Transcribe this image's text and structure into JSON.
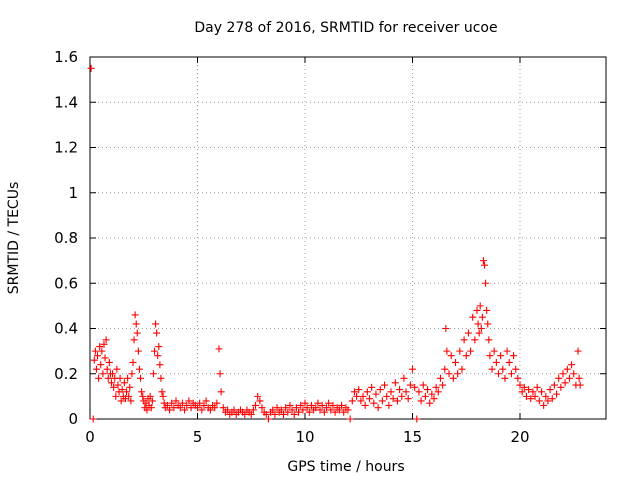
{
  "chart_data": {
    "type": "scatter",
    "title": "Day 278 of 2016, SRMTID for receiver ucoe",
    "xlabel": "GPS time / hours",
    "ylabel": "SRMTID / TECUs",
    "xlim": [
      0,
      24
    ],
    "ylim": [
      0,
      1.6
    ],
    "xticks": [
      0,
      5,
      10,
      15,
      20
    ],
    "yticks": [
      0,
      0.2,
      0.4,
      0.6,
      0.8,
      1,
      1.2,
      1.4,
      1.6
    ],
    "ytick_labels": [
      "0",
      "0.2",
      "0.4",
      "0.6",
      "0.8",
      "1",
      "1.2",
      "1.4",
      "1.6"
    ],
    "grid": true,
    "marker": "plus",
    "series_color": "#ff0000",
    "series": [
      {
        "name": "SRMTID",
        "points": [
          [
            0.05,
            1.55
          ],
          [
            0.15,
            0.0
          ],
          [
            0.2,
            0.26
          ],
          [
            0.25,
            0.3
          ],
          [
            0.3,
            0.22
          ],
          [
            0.35,
            0.28
          ],
          [
            0.4,
            0.18
          ],
          [
            0.45,
            0.32
          ],
          [
            0.5,
            0.24
          ],
          [
            0.55,
            0.3
          ],
          [
            0.6,
            0.2
          ],
          [
            0.65,
            0.33
          ],
          [
            0.7,
            0.27
          ],
          [
            0.75,
            0.35
          ],
          [
            0.8,
            0.22
          ],
          [
            0.85,
            0.18
          ],
          [
            0.9,
            0.25
          ],
          [
            0.95,
            0.2
          ],
          [
            1.0,
            0.16
          ],
          [
            1.05,
            0.2
          ],
          [
            1.1,
            0.14
          ],
          [
            1.15,
            0.18
          ],
          [
            1.2,
            0.1
          ],
          [
            1.25,
            0.22
          ],
          [
            1.3,
            0.15
          ],
          [
            1.35,
            0.12
          ],
          [
            1.4,
            0.18
          ],
          [
            1.45,
            0.08
          ],
          [
            1.5,
            0.13
          ],
          [
            1.55,
            0.1
          ],
          [
            1.6,
            0.16
          ],
          [
            1.65,
            0.09
          ],
          [
            1.7,
            0.12
          ],
          [
            1.75,
            0.18
          ],
          [
            1.8,
            0.1
          ],
          [
            1.85,
            0.14
          ],
          [
            1.9,
            0.08
          ],
          [
            1.95,
            0.2
          ],
          [
            2.0,
            0.25
          ],
          [
            2.05,
            0.35
          ],
          [
            2.1,
            0.46
          ],
          [
            2.15,
            0.42
          ],
          [
            2.2,
            0.38
          ],
          [
            2.25,
            0.3
          ],
          [
            2.3,
            0.22
          ],
          [
            2.35,
            0.18
          ],
          [
            2.4,
            0.12
          ],
          [
            2.45,
            0.1
          ],
          [
            2.5,
            0.08
          ],
          [
            2.55,
            0.05
          ],
          [
            2.6,
            0.07
          ],
          [
            2.65,
            0.04
          ],
          [
            2.7,
            0.09
          ],
          [
            2.75,
            0.06
          ],
          [
            2.8,
            0.1
          ],
          [
            2.85,
            0.05
          ],
          [
            2.9,
            0.08
          ],
          [
            2.95,
            0.2
          ],
          [
            3.0,
            0.3
          ],
          [
            3.05,
            0.42
          ],
          [
            3.1,
            0.38
          ],
          [
            3.15,
            0.28
          ],
          [
            3.2,
            0.32
          ],
          [
            3.25,
            0.24
          ],
          [
            3.3,
            0.18
          ],
          [
            3.35,
            0.12
          ],
          [
            3.4,
            0.1
          ],
          [
            3.45,
            0.07
          ],
          [
            3.5,
            0.05
          ],
          [
            3.6,
            0.06
          ],
          [
            3.7,
            0.04
          ],
          [
            3.8,
            0.07
          ],
          [
            3.9,
            0.05
          ],
          [
            4.0,
            0.08
          ],
          [
            4.1,
            0.06
          ],
          [
            4.2,
            0.05
          ],
          [
            4.3,
            0.07
          ],
          [
            4.4,
            0.04
          ],
          [
            4.5,
            0.06
          ],
          [
            4.6,
            0.08
          ],
          [
            4.7,
            0.05
          ],
          [
            4.8,
            0.07
          ],
          [
            4.9,
            0.06
          ],
          [
            5.0,
            0.05
          ],
          [
            5.1,
            0.07
          ],
          [
            5.2,
            0.04
          ],
          [
            5.3,
            0.06
          ],
          [
            5.4,
            0.08
          ],
          [
            5.5,
            0.05
          ],
          [
            5.6,
            0.04
          ],
          [
            5.7,
            0.06
          ],
          [
            5.8,
            0.05
          ],
          [
            5.9,
            0.07
          ],
          [
            6.0,
            0.31
          ],
          [
            6.05,
            0.2
          ],
          [
            6.1,
            0.12
          ],
          [
            6.2,
            0.05
          ],
          [
            6.3,
            0.03
          ],
          [
            6.4,
            0.04
          ],
          [
            6.5,
            0.02
          ],
          [
            6.6,
            0.03
          ],
          [
            6.7,
            0.04
          ],
          [
            6.8,
            0.02
          ],
          [
            6.9,
            0.03
          ],
          [
            7.0,
            0.04
          ],
          [
            7.1,
            0.03
          ],
          [
            7.2,
            0.02
          ],
          [
            7.3,
            0.04
          ],
          [
            7.4,
            0.03
          ],
          [
            7.5,
            0.02
          ],
          [
            7.6,
            0.04
          ],
          [
            7.7,
            0.06
          ],
          [
            7.8,
            0.1
          ],
          [
            7.9,
            0.08
          ],
          [
            8.0,
            0.05
          ],
          [
            8.1,
            0.03
          ],
          [
            8.2,
            0.02
          ],
          [
            8.3,
            0.0
          ],
          [
            8.4,
            0.03
          ],
          [
            8.5,
            0.04
          ],
          [
            8.6,
            0.02
          ],
          [
            8.7,
            0.05
          ],
          [
            8.8,
            0.03
          ],
          [
            8.9,
            0.04
          ],
          [
            9.0,
            0.02
          ],
          [
            9.1,
            0.05
          ],
          [
            9.2,
            0.03
          ],
          [
            9.3,
            0.06
          ],
          [
            9.4,
            0.04
          ],
          [
            9.5,
            0.02
          ],
          [
            9.6,
            0.05
          ],
          [
            9.7,
            0.03
          ],
          [
            9.8,
            0.06
          ],
          [
            9.9,
            0.04
          ],
          [
            10.0,
            0.07
          ],
          [
            10.1,
            0.05
          ],
          [
            10.2,
            0.03
          ],
          [
            10.3,
            0.06
          ],
          [
            10.4,
            0.04
          ],
          [
            10.5,
            0.05
          ],
          [
            10.6,
            0.07
          ],
          [
            10.7,
            0.04
          ],
          [
            10.8,
            0.06
          ],
          [
            10.9,
            0.03
          ],
          [
            11.0,
            0.05
          ],
          [
            11.1,
            0.07
          ],
          [
            11.2,
            0.04
          ],
          [
            11.3,
            0.06
          ],
          [
            11.4,
            0.03
          ],
          [
            11.5,
            0.05
          ],
          [
            11.6,
            0.04
          ],
          [
            11.7,
            0.06
          ],
          [
            11.8,
            0.03
          ],
          [
            11.9,
            0.05
          ],
          [
            12.0,
            0.04
          ],
          [
            12.1,
            0.0
          ],
          [
            12.2,
            0.08
          ],
          [
            12.3,
            0.12
          ],
          [
            12.4,
            0.1
          ],
          [
            12.5,
            0.13
          ],
          [
            12.6,
            0.08
          ],
          [
            12.7,
            0.1
          ],
          [
            12.8,
            0.06
          ],
          [
            12.9,
            0.12
          ],
          [
            13.0,
            0.09
          ],
          [
            13.1,
            0.14
          ],
          [
            13.2,
            0.07
          ],
          [
            13.3,
            0.11
          ],
          [
            13.4,
            0.05
          ],
          [
            13.5,
            0.13
          ],
          [
            13.6,
            0.08
          ],
          [
            13.7,
            0.15
          ],
          [
            13.8,
            0.1
          ],
          [
            13.9,
            0.06
          ],
          [
            14.0,
            0.12
          ],
          [
            14.1,
            0.09
          ],
          [
            14.2,
            0.16
          ],
          [
            14.3,
            0.08
          ],
          [
            14.4,
            0.13
          ],
          [
            14.5,
            0.1
          ],
          [
            14.6,
            0.18
          ],
          [
            14.7,
            0.12
          ],
          [
            14.8,
            0.09
          ],
          [
            14.9,
            0.15
          ],
          [
            15.0,
            0.22
          ],
          [
            15.1,
            0.14
          ],
          [
            15.2,
            0.0
          ],
          [
            15.3,
            0.12
          ],
          [
            15.4,
            0.08
          ],
          [
            15.5,
            0.15
          ],
          [
            15.6,
            0.1
          ],
          [
            15.7,
            0.13
          ],
          [
            15.8,
            0.07
          ],
          [
            15.9,
            0.11
          ],
          [
            16.0,
            0.09
          ],
          [
            16.1,
            0.14
          ],
          [
            16.2,
            0.12
          ],
          [
            16.3,
            0.18
          ],
          [
            16.4,
            0.15
          ],
          [
            16.5,
            0.22
          ],
          [
            16.55,
            0.4
          ],
          [
            16.6,
            0.3
          ],
          [
            16.7,
            0.2
          ],
          [
            16.8,
            0.28
          ],
          [
            16.9,
            0.18
          ],
          [
            17.0,
            0.25
          ],
          [
            17.1,
            0.2
          ],
          [
            17.2,
            0.3
          ],
          [
            17.3,
            0.22
          ],
          [
            17.4,
            0.35
          ],
          [
            17.5,
            0.28
          ],
          [
            17.6,
            0.38
          ],
          [
            17.7,
            0.3
          ],
          [
            17.8,
            0.45
          ],
          [
            17.9,
            0.35
          ],
          [
            18.0,
            0.48
          ],
          [
            18.05,
            0.42
          ],
          [
            18.1,
            0.38
          ],
          [
            18.15,
            0.5
          ],
          [
            18.2,
            0.4
          ],
          [
            18.25,
            0.45
          ],
          [
            18.3,
            0.7
          ],
          [
            18.35,
            0.68
          ],
          [
            18.4,
            0.6
          ],
          [
            18.45,
            0.48
          ],
          [
            18.5,
            0.42
          ],
          [
            18.55,
            0.35
          ],
          [
            18.6,
            0.28
          ],
          [
            18.7,
            0.22
          ],
          [
            18.8,
            0.3
          ],
          [
            18.9,
            0.25
          ],
          [
            19.0,
            0.2
          ],
          [
            19.1,
            0.28
          ],
          [
            19.2,
            0.22
          ],
          [
            19.3,
            0.18
          ],
          [
            19.4,
            0.3
          ],
          [
            19.5,
            0.25
          ],
          [
            19.6,
            0.2
          ],
          [
            19.7,
            0.28
          ],
          [
            19.8,
            0.22
          ],
          [
            19.9,
            0.18
          ],
          [
            20.0,
            0.15
          ],
          [
            20.1,
            0.12
          ],
          [
            20.2,
            0.14
          ],
          [
            20.3,
            0.1
          ],
          [
            20.4,
            0.13
          ],
          [
            20.5,
            0.09
          ],
          [
            20.6,
            0.12
          ],
          [
            20.7,
            0.1
          ],
          [
            20.8,
            0.14
          ],
          [
            20.9,
            0.08
          ],
          [
            21.0,
            0.12
          ],
          [
            21.1,
            0.06
          ],
          [
            21.2,
            0.1
          ],
          [
            21.3,
            0.08
          ],
          [
            21.4,
            0.13
          ],
          [
            21.5,
            0.09
          ],
          [
            21.6,
            0.15
          ],
          [
            21.7,
            0.11
          ],
          [
            21.8,
            0.18
          ],
          [
            21.9,
            0.14
          ],
          [
            22.0,
            0.2
          ],
          [
            22.1,
            0.16
          ],
          [
            22.2,
            0.22
          ],
          [
            22.3,
            0.18
          ],
          [
            22.4,
            0.24
          ],
          [
            22.5,
            0.2
          ],
          [
            22.6,
            0.15
          ],
          [
            22.7,
            0.3
          ],
          [
            22.75,
            0.18
          ],
          [
            22.8,
            0.15
          ]
        ]
      }
    ]
  }
}
